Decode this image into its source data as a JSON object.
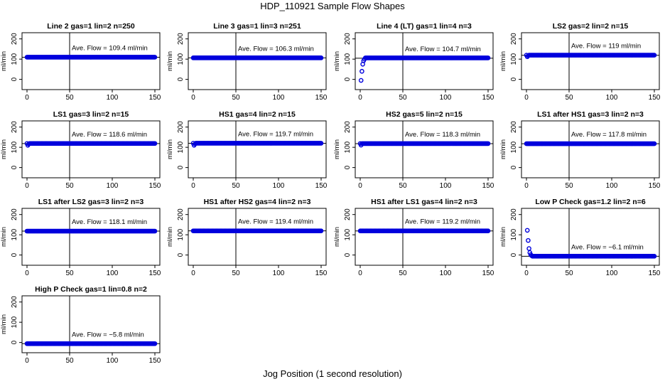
{
  "title": "HDP_110921  Sample Flow Shapes",
  "x_axis_label": "Jog Position (1 second resolution)",
  "colors": {
    "points": "#0000dd",
    "axes": "#000000"
  },
  "chart_data": [
    {
      "type": "scatter",
      "title": "Line 2 gas=1 lin=2 n=250",
      "ylabel": "ml/min",
      "annotation": "Ave. Flow = 109.4  ml/min",
      "xlim": [
        0,
        150
      ],
      "ylim": [
        -40,
        220
      ],
      "xticks": [
        0,
        50,
        100,
        150
      ],
      "yticks": [
        0,
        100,
        200
      ],
      "vline_x": 50,
      "hline_y": 109.4,
      "shape": "flat",
      "level": 109.4
    },
    {
      "type": "scatter",
      "title": "Line 3 gas=1 lin=3 n=251",
      "ylabel": "ml/min",
      "annotation": "Ave. Flow = 106.3  ml/min",
      "xlim": [
        0,
        150
      ],
      "ylim": [
        -40,
        220
      ],
      "xticks": [
        0,
        50,
        100,
        150
      ],
      "yticks": [
        0,
        100,
        200
      ],
      "vline_x": 50,
      "hline_y": 106.3,
      "shape": "flat",
      "level": 106.3
    },
    {
      "type": "scatter",
      "title": "Line 4 (LT) gas=1 lin=4 n=3",
      "ylabel": "ml/min",
      "annotation": "Ave. Flow = 104.7  ml/min",
      "xlim": [
        0,
        150
      ],
      "ylim": [
        -40,
        220
      ],
      "xticks": [
        0,
        50,
        100,
        150
      ],
      "yticks": [
        0,
        100,
        200
      ],
      "vline_x": 50,
      "hline_y": 104.7,
      "shape": "rise",
      "level": 106,
      "start": [
        [
          1,
          -5
        ],
        [
          2,
          40
        ],
        [
          3,
          75
        ],
        [
          4,
          92
        ],
        [
          5,
          100
        ]
      ]
    },
    {
      "type": "scatter",
      "title": "LS2 gas=2 lin=2 n=15",
      "ylabel": "ml/min",
      "annotation": "Ave. Flow = 119  ml/min",
      "xlim": [
        0,
        150
      ],
      "ylim": [
        -40,
        220
      ],
      "xticks": [
        0,
        50,
        100,
        150
      ],
      "yticks": [
        0,
        100,
        200
      ],
      "vline_x": 50,
      "hline_y": 119,
      "shape": "flat",
      "level": 119.5,
      "start": [
        [
          1,
          112
        ],
        [
          2,
          117
        ]
      ]
    },
    {
      "type": "scatter",
      "title": "LS1 gas=3 lin=2 n=15",
      "ylabel": "ml/min",
      "annotation": "Ave. Flow = 118.6  ml/min",
      "xlim": [
        0,
        150
      ],
      "ylim": [
        -40,
        220
      ],
      "xticks": [
        0,
        50,
        100,
        150
      ],
      "yticks": [
        0,
        100,
        200
      ],
      "vline_x": 50,
      "hline_y": 118.6,
      "shape": "flat",
      "level": 119,
      "start": [
        [
          1,
          110
        ],
        [
          2,
          116
        ]
      ]
    },
    {
      "type": "scatter",
      "title": "HS1 gas=4 lin=2 n=15",
      "ylabel": "ml/min",
      "annotation": "Ave. Flow = 119.7  ml/min",
      "xlim": [
        0,
        150
      ],
      "ylim": [
        -40,
        220
      ],
      "xticks": [
        0,
        50,
        100,
        150
      ],
      "yticks": [
        0,
        100,
        200
      ],
      "vline_x": 50,
      "hline_y": 119.7,
      "shape": "flat",
      "level": 120,
      "start": [
        [
          1,
          110
        ],
        [
          2,
          116
        ]
      ]
    },
    {
      "type": "scatter",
      "title": "HS2 gas=5 lin=2 n=15",
      "ylabel": "ml/min",
      "annotation": "Ave. Flow = 118.3  ml/min",
      "xlim": [
        0,
        150
      ],
      "ylim": [
        -40,
        220
      ],
      "xticks": [
        0,
        50,
        100,
        150
      ],
      "yticks": [
        0,
        100,
        200
      ],
      "vline_x": 50,
      "hline_y": 118.3,
      "shape": "flat",
      "level": 118.5,
      "start": [
        [
          1,
          111
        ]
      ]
    },
    {
      "type": "scatter",
      "title": "LS1 after HS1 gas=3 lin=2 n=3",
      "ylabel": "ml/min",
      "annotation": "Ave. Flow = 117.8  ml/min",
      "xlim": [
        0,
        150
      ],
      "ylim": [
        -40,
        220
      ],
      "xticks": [
        0,
        50,
        100,
        150
      ],
      "yticks": [
        0,
        100,
        200
      ],
      "vline_x": 50,
      "hline_y": 117.8,
      "shape": "flat",
      "level": 117.8
    },
    {
      "type": "scatter",
      "title": "LS1 after LS2 gas=3 lin=2 n=3",
      "ylabel": "ml/min",
      "annotation": "Ave. Flow = 118.1  ml/min",
      "xlim": [
        0,
        150
      ],
      "ylim": [
        -40,
        220
      ],
      "xticks": [
        0,
        50,
        100,
        150
      ],
      "yticks": [
        0,
        100,
        200
      ],
      "vline_x": 50,
      "hline_y": 118.1,
      "shape": "flat",
      "level": 118.1
    },
    {
      "type": "scatter",
      "title": "HS1 after HS2 gas=4 lin=2 n=3",
      "ylabel": "ml/min",
      "annotation": "Ave. Flow = 119.4  ml/min",
      "xlim": [
        0,
        150
      ],
      "ylim": [
        -40,
        220
      ],
      "xticks": [
        0,
        50,
        100,
        150
      ],
      "yticks": [
        0,
        100,
        200
      ],
      "vline_x": 50,
      "hline_y": 119.4,
      "shape": "flat",
      "level": 119.4
    },
    {
      "type": "scatter",
      "title": "HS1 after LS1 gas=4 lin=2 n=3",
      "ylabel": "ml/min",
      "annotation": "Ave. Flow = 119.2  ml/min",
      "xlim": [
        0,
        150
      ],
      "ylim": [
        -40,
        220
      ],
      "xticks": [
        0,
        50,
        100,
        150
      ],
      "yticks": [
        0,
        100,
        200
      ],
      "vline_x": 50,
      "hline_y": 119.2,
      "shape": "flat",
      "level": 119.2
    },
    {
      "type": "scatter",
      "title": "Low P Check gas=1.2 lin=2 n=6",
      "ylabel": "ml/min",
      "annotation": "Ave. Flow = −6.1  ml/min",
      "xlim": [
        0,
        150
      ],
      "ylim": [
        -40,
        220
      ],
      "xticks": [
        0,
        50,
        100,
        150
      ],
      "yticks": [
        0,
        100,
        200
      ],
      "vline_x": 50,
      "hline_y": -6.1,
      "shape": "decay",
      "level": -6.1,
      "start": [
        [
          1,
          122
        ],
        [
          2,
          72
        ],
        [
          3,
          32
        ],
        [
          4,
          12
        ],
        [
          5,
          2
        ],
        [
          6,
          -3
        ]
      ]
    },
    {
      "type": "scatter",
      "title": "High P Check gas=1 lin=0.8 n=2",
      "ylabel": "ml/min",
      "annotation": "Ave. Flow = −5.8  ml/min",
      "xlim": [
        0,
        150
      ],
      "ylim": [
        -40,
        220
      ],
      "xticks": [
        0,
        50,
        100,
        150
      ],
      "yticks": [
        0,
        100,
        200
      ],
      "vline_x": 50,
      "hline_y": -5.8,
      "shape": "flat",
      "level": -5.8
    }
  ]
}
